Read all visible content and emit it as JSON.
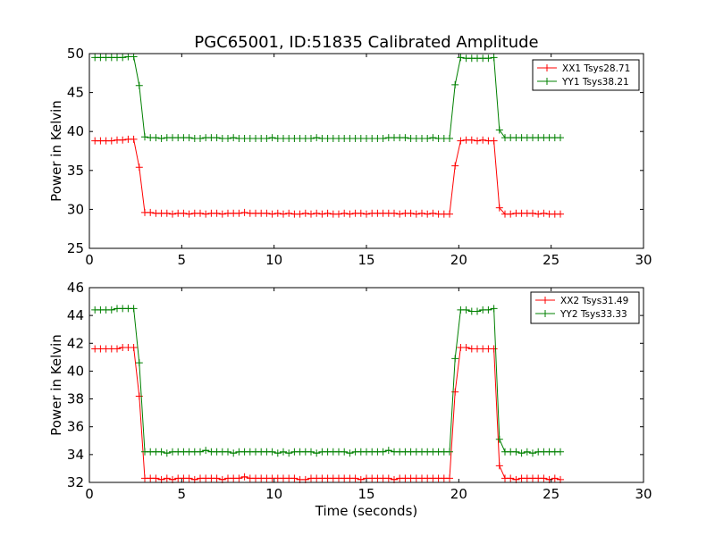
{
  "figure_title": "PGC65001, ID:51835 Calibrated Amplitude",
  "chart_data": [
    {
      "type": "line",
      "title": "PGC65001, ID:51835 Calibrated Amplitude",
      "xlabel": "",
      "ylabel": "Power in Kelvin",
      "xlim": [
        0,
        30
      ],
      "ylim": [
        25,
        50
      ],
      "xticks": [
        0,
        5,
        10,
        15,
        20,
        25,
        30
      ],
      "yticks": [
        25,
        30,
        35,
        40,
        45,
        50
      ],
      "grid": false,
      "legend_position": "top-right",
      "x": [
        0.3,
        0.6,
        0.9,
        1.2,
        1.5,
        1.8,
        2.1,
        2.4,
        2.7,
        3.0,
        3.3,
        3.6,
        3.9,
        4.2,
        4.5,
        4.8,
        5.1,
        5.4,
        5.7,
        6.0,
        6.3,
        6.6,
        6.9,
        7.2,
        7.5,
        7.8,
        8.1,
        8.4,
        8.7,
        9.0,
        9.3,
        9.6,
        9.9,
        10.2,
        10.5,
        10.8,
        11.1,
        11.4,
        11.7,
        12.0,
        12.3,
        12.6,
        12.9,
        13.2,
        13.5,
        13.8,
        14.1,
        14.4,
        14.7,
        15.0,
        15.3,
        15.6,
        15.9,
        16.2,
        16.5,
        16.8,
        17.1,
        17.4,
        17.7,
        18.0,
        18.3,
        18.6,
        18.9,
        19.2,
        19.5,
        19.8,
        20.1,
        20.4,
        20.7,
        21.0,
        21.3,
        21.6,
        21.9,
        22.2,
        22.5,
        22.8,
        23.1,
        23.4,
        23.7,
        24.0,
        24.3,
        24.6,
        24.9,
        25.2,
        25.5
      ],
      "series": [
        {
          "name": "XX1 Tsys28.71",
          "color": "#ff0000",
          "values": [
            38.8,
            38.8,
            38.8,
            38.8,
            38.9,
            38.9,
            39.0,
            39.0,
            35.4,
            29.6,
            29.6,
            29.5,
            29.5,
            29.5,
            29.4,
            29.5,
            29.5,
            29.4,
            29.5,
            29.5,
            29.4,
            29.5,
            29.5,
            29.4,
            29.5,
            29.5,
            29.5,
            29.6,
            29.5,
            29.5,
            29.5,
            29.5,
            29.4,
            29.5,
            29.4,
            29.5,
            29.4,
            29.4,
            29.5,
            29.4,
            29.5,
            29.4,
            29.5,
            29.4,
            29.4,
            29.5,
            29.4,
            29.5,
            29.5,
            29.4,
            29.5,
            29.5,
            29.5,
            29.5,
            29.5,
            29.4,
            29.5,
            29.5,
            29.4,
            29.5,
            29.4,
            29.5,
            29.4,
            29.4,
            29.4,
            35.6,
            38.8,
            38.9,
            38.9,
            38.8,
            38.9,
            38.8,
            38.8,
            30.2,
            29.4,
            29.4,
            29.5,
            29.5,
            29.5,
            29.5,
            29.4,
            29.5,
            29.4,
            29.4,
            29.4
          ]
        },
        {
          "name": "YY1 Tsys38.21",
          "color": "#008000",
          "values": [
            49.5,
            49.5,
            49.5,
            49.5,
            49.5,
            49.5,
            49.6,
            49.6,
            45.9,
            39.3,
            39.2,
            39.2,
            39.1,
            39.2,
            39.2,
            39.2,
            39.2,
            39.2,
            39.1,
            39.1,
            39.2,
            39.2,
            39.2,
            39.1,
            39.1,
            39.2,
            39.1,
            39.1,
            39.1,
            39.1,
            39.1,
            39.1,
            39.2,
            39.1,
            39.1,
            39.1,
            39.1,
            39.1,
            39.1,
            39.1,
            39.2,
            39.1,
            39.1,
            39.1,
            39.1,
            39.1,
            39.1,
            39.1,
            39.1,
            39.1,
            39.1,
            39.1,
            39.1,
            39.2,
            39.2,
            39.2,
            39.2,
            39.1,
            39.1,
            39.1,
            39.1,
            39.2,
            39.1,
            39.1,
            39.1,
            46.0,
            49.5,
            49.4,
            49.4,
            49.4,
            49.4,
            49.4,
            49.5,
            40.2,
            39.2,
            39.2,
            39.2,
            39.2,
            39.2,
            39.2,
            39.2,
            39.2,
            39.2,
            39.2,
            39.2
          ]
        }
      ]
    },
    {
      "type": "line",
      "title": "",
      "xlabel": "Time (seconds)",
      "ylabel": "Power in Kelvin",
      "xlim": [
        0,
        30
      ],
      "ylim": [
        32,
        46
      ],
      "xticks": [
        0,
        5,
        10,
        15,
        20,
        25,
        30
      ],
      "yticks": [
        32,
        34,
        36,
        38,
        40,
        42,
        44,
        46
      ],
      "grid": false,
      "legend_position": "top-right",
      "x": [
        0.3,
        0.6,
        0.9,
        1.2,
        1.5,
        1.8,
        2.1,
        2.4,
        2.7,
        3.0,
        3.3,
        3.6,
        3.9,
        4.2,
        4.5,
        4.8,
        5.1,
        5.4,
        5.7,
        6.0,
        6.3,
        6.6,
        6.9,
        7.2,
        7.5,
        7.8,
        8.1,
        8.4,
        8.7,
        9.0,
        9.3,
        9.6,
        9.9,
        10.2,
        10.5,
        10.8,
        11.1,
        11.4,
        11.7,
        12.0,
        12.3,
        12.6,
        12.9,
        13.2,
        13.5,
        13.8,
        14.1,
        14.4,
        14.7,
        15.0,
        15.3,
        15.6,
        15.9,
        16.2,
        16.5,
        16.8,
        17.1,
        17.4,
        17.7,
        18.0,
        18.3,
        18.6,
        18.9,
        19.2,
        19.5,
        19.8,
        20.1,
        20.4,
        20.7,
        21.0,
        21.3,
        21.6,
        21.9,
        22.2,
        22.5,
        22.8,
        23.1,
        23.4,
        23.7,
        24.0,
        24.3,
        24.6,
        24.9,
        25.2,
        25.5
      ],
      "series": [
        {
          "name": "XX2 Tsys31.49",
          "color": "#ff0000",
          "values": [
            41.6,
            41.6,
            41.6,
            41.6,
            41.6,
            41.7,
            41.7,
            41.7,
            38.2,
            32.3,
            32.3,
            32.3,
            32.2,
            32.3,
            32.2,
            32.3,
            32.3,
            32.3,
            32.2,
            32.3,
            32.3,
            32.3,
            32.3,
            32.2,
            32.3,
            32.3,
            32.3,
            32.4,
            32.3,
            32.3,
            32.3,
            32.3,
            32.3,
            32.3,
            32.3,
            32.3,
            32.3,
            32.2,
            32.2,
            32.3,
            32.3,
            32.3,
            32.3,
            32.3,
            32.3,
            32.3,
            32.3,
            32.3,
            32.2,
            32.3,
            32.3,
            32.3,
            32.3,
            32.3,
            32.2,
            32.3,
            32.3,
            32.3,
            32.3,
            32.3,
            32.3,
            32.3,
            32.3,
            32.3,
            32.3,
            38.5,
            41.7,
            41.7,
            41.6,
            41.6,
            41.6,
            41.6,
            41.6,
            33.2,
            32.3,
            32.3,
            32.2,
            32.3,
            32.3,
            32.3,
            32.3,
            32.3,
            32.2,
            32.3,
            32.2
          ]
        },
        {
          "name": "YY2 Tsys33.33",
          "color": "#008000",
          "values": [
            44.4,
            44.4,
            44.4,
            44.4,
            44.5,
            44.5,
            44.5,
            44.5,
            40.6,
            34.2,
            34.2,
            34.2,
            34.2,
            34.1,
            34.2,
            34.2,
            34.2,
            34.2,
            34.2,
            34.2,
            34.3,
            34.2,
            34.2,
            34.2,
            34.2,
            34.1,
            34.2,
            34.2,
            34.2,
            34.2,
            34.2,
            34.2,
            34.2,
            34.1,
            34.2,
            34.1,
            34.2,
            34.2,
            34.2,
            34.2,
            34.1,
            34.2,
            34.2,
            34.2,
            34.2,
            34.2,
            34.1,
            34.2,
            34.2,
            34.2,
            34.2,
            34.2,
            34.2,
            34.3,
            34.2,
            34.2,
            34.2,
            34.2,
            34.2,
            34.2,
            34.2,
            34.2,
            34.2,
            34.2,
            34.2,
            40.9,
            44.4,
            44.4,
            44.3,
            44.3,
            44.4,
            44.4,
            44.5,
            35.1,
            34.2,
            34.2,
            34.2,
            34.1,
            34.2,
            34.1,
            34.2,
            34.2,
            34.2,
            34.2,
            34.2
          ]
        }
      ]
    }
  ]
}
